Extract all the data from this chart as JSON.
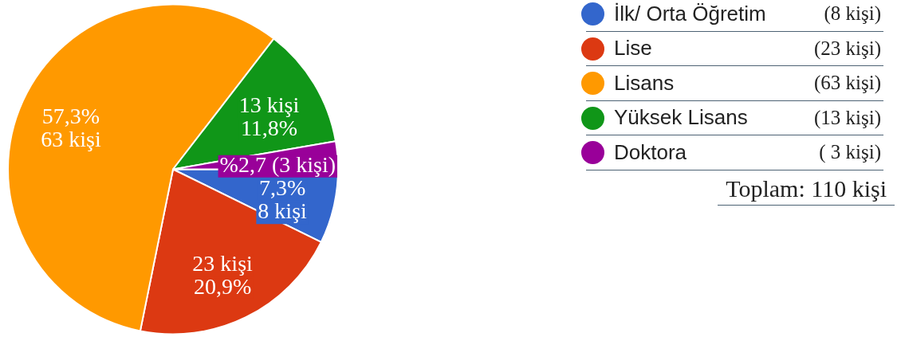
{
  "chart_data": {
    "type": "pie",
    "categories": [
      "İlk/ Orta Öğretim",
      "Lise",
      "Lisans",
      "Yüksek Lisans",
      "Doktora"
    ],
    "values": [
      8,
      23,
      63,
      13,
      3
    ],
    "colors": [
      "#3366cc",
      "#dc3912",
      "#ff9900",
      "#109618",
      "#990099"
    ],
    "value_labels": [
      "7,3%\n8 kişi",
      "23 kişi\n20,9%",
      "57,3%\n63 kişi",
      "13 kişi\n11,8%",
      "%2,7 (3 kişi)"
    ],
    "legend": "right",
    "annotations": [
      "(8 kişi)",
      "(23 kişi)",
      "(63 kişi)",
      "(13 kişi)",
      "( 3 kişi)",
      "Toplam: 110 kişi"
    ]
  }
}
